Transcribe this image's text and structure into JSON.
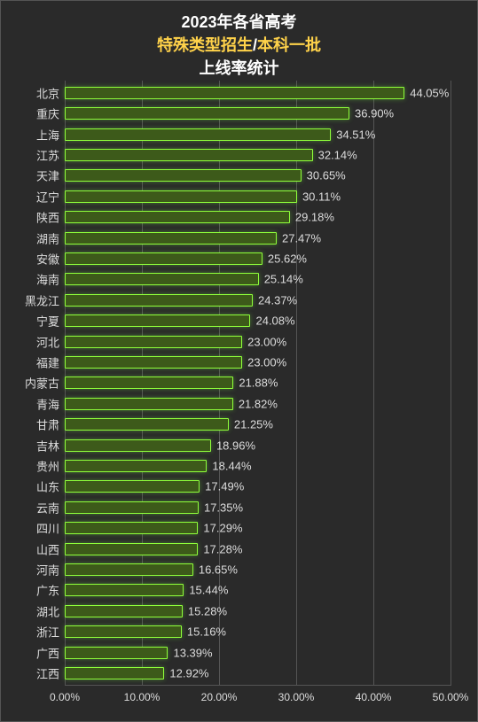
{
  "title": {
    "line1": "2023年各省高考",
    "line2a": "特殊类型招生",
    "line2sep": "/",
    "line2b": "本科一批",
    "line3": "上线率统计",
    "fontsize": 18,
    "color_main": "#ffffff",
    "color_highlight": "#ffd24a"
  },
  "chart": {
    "type": "bar",
    "orientation": "horizontal",
    "background_color": "#2a2a2a",
    "grid_color": "#555555",
    "label_color": "#dddddd",
    "label_fontsize": 13,
    "bar_fill": "#3d5a1a",
    "bar_border": "#8fff3a",
    "bar_glow": "rgba(120,255,60,0.35)",
    "xlim": [
      0,
      50
    ],
    "xtick_step": 10,
    "xtick_format_suffix": "%",
    "xticks": [
      "0.00%",
      "10.00%",
      "20.00%",
      "30.00%",
      "40.00%",
      "50.00%"
    ],
    "value_format_decimals": 2,
    "data": [
      {
        "label": "北京",
        "value": 44.05,
        "display": "44.05%"
      },
      {
        "label": "重庆",
        "value": 36.9,
        "display": "36.90%"
      },
      {
        "label": "上海",
        "value": 34.51,
        "display": "34.51%"
      },
      {
        "label": "江苏",
        "value": 32.14,
        "display": "32.14%"
      },
      {
        "label": "天津",
        "value": 30.65,
        "display": "30.65%"
      },
      {
        "label": "辽宁",
        "value": 30.11,
        "display": "30.11%"
      },
      {
        "label": "陕西",
        "value": 29.18,
        "display": "29.18%"
      },
      {
        "label": "湖南",
        "value": 27.47,
        "display": "27.47%"
      },
      {
        "label": "安徽",
        "value": 25.62,
        "display": "25.62%"
      },
      {
        "label": "海南",
        "value": 25.14,
        "display": "25.14%"
      },
      {
        "label": "黑龙江",
        "value": 24.37,
        "display": "24.37%"
      },
      {
        "label": "宁夏",
        "value": 24.08,
        "display": "24.08%"
      },
      {
        "label": "河北",
        "value": 23.0,
        "display": "23.00%"
      },
      {
        "label": "福建",
        "value": 23.0,
        "display": "23.00%"
      },
      {
        "label": "内蒙古",
        "value": 21.88,
        "display": "21.88%"
      },
      {
        "label": "青海",
        "value": 21.82,
        "display": "21.82%"
      },
      {
        "label": "甘肃",
        "value": 21.25,
        "display": "21.25%"
      },
      {
        "label": "吉林",
        "value": 18.96,
        "display": "18.96%"
      },
      {
        "label": "贵州",
        "value": 18.44,
        "display": "18.44%"
      },
      {
        "label": "山东",
        "value": 17.49,
        "display": "17.49%"
      },
      {
        "label": "云南",
        "value": 17.35,
        "display": "17.35%"
      },
      {
        "label": "四川",
        "value": 17.29,
        "display": "17.29%"
      },
      {
        "label": "山西",
        "value": 17.28,
        "display": "17.28%"
      },
      {
        "label": "河南",
        "value": 16.65,
        "display": "16.65%"
      },
      {
        "label": "广东",
        "value": 15.44,
        "display": "15.44%"
      },
      {
        "label": "湖北",
        "value": 15.28,
        "display": "15.28%"
      },
      {
        "label": "浙江",
        "value": 15.16,
        "display": "15.16%"
      },
      {
        "label": "广西",
        "value": 13.39,
        "display": "13.39%"
      },
      {
        "label": "江西",
        "value": 12.92,
        "display": "12.92%"
      }
    ]
  }
}
